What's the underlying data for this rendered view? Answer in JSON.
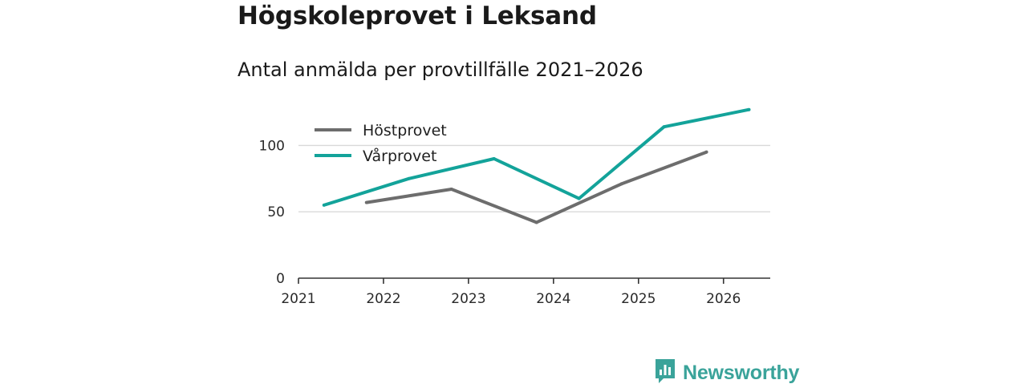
{
  "header": {
    "title": "Högskoleprovet i Leksand",
    "subtitle": "Antal anmälda per provtillfälle 2021–2026"
  },
  "brand": {
    "name": "Newsworthy",
    "color": "#3aa39a",
    "icon": "bar-chart-logo-icon"
  },
  "chart_data": {
    "type": "line",
    "title": "Antal anmälda per provtillfälle 2021–2026",
    "xlabel": "",
    "ylabel": "",
    "xlim": [
      2021,
      2026.55
    ],
    "ylim": [
      0,
      125
    ],
    "x_ticks": [
      2021,
      2022,
      2023,
      2024,
      2025,
      2026
    ],
    "y_ticks": [
      0,
      50,
      100
    ],
    "y_gridlines": [
      50,
      100
    ],
    "legend_position": "top-left",
    "series": [
      {
        "name": "Höstprovet",
        "color": "#6d6d6d",
        "x": [
          2021.8,
          2022.8,
          2023.8,
          2024.8,
          2025.8
        ],
        "values": [
          57,
          67,
          42,
          71,
          95
        ]
      },
      {
        "name": "Vårprovet",
        "color": "#13a39a",
        "x": [
          2021.3,
          2022.3,
          2023.3,
          2024.3,
          2025.3,
          2026.3
        ],
        "values": [
          55,
          75,
          90,
          60,
          114,
          127
        ]
      }
    ]
  }
}
